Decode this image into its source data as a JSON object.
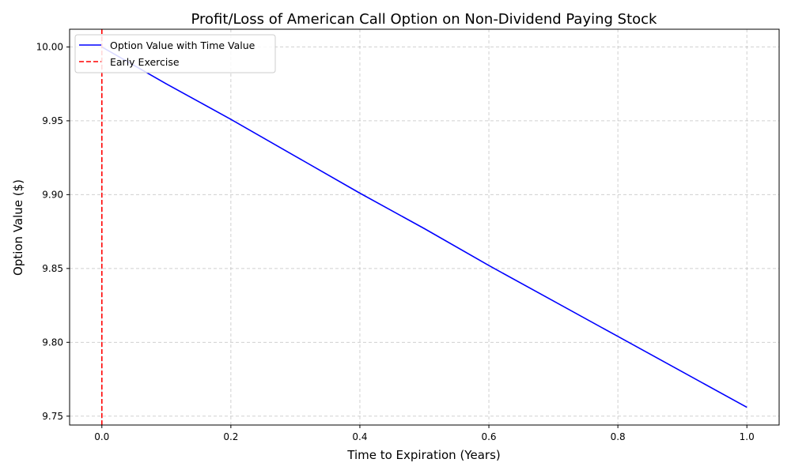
{
  "chart_data": {
    "type": "line",
    "title": "Profit/Loss of American Call Option on Non-Dividend Paying Stock",
    "xlabel": "Time to Expiration (Years)",
    "ylabel": "Option Value ($)",
    "xlim": [
      -0.05,
      1.05
    ],
    "ylim": [
      9.744,
      10.012
    ],
    "x_ticks": [
      0.0,
      0.2,
      0.4,
      0.6,
      0.8,
      1.0
    ],
    "x_tick_labels": [
      "0.0",
      "0.2",
      "0.4",
      "0.6",
      "0.8",
      "1.0"
    ],
    "y_ticks": [
      9.75,
      9.8,
      9.85,
      9.9,
      9.95,
      10.0
    ],
    "y_tick_labels": [
      "9.75",
      "9.80",
      "9.85",
      "9.90",
      "9.95",
      "10.00"
    ],
    "grid": true,
    "legend_position": "top-left",
    "series": [
      {
        "name": "Option Value with Time Value",
        "color": "#0000ff",
        "style": "solid",
        "x": [
          0.0,
          0.1,
          0.2,
          0.3,
          0.4,
          0.5,
          0.6,
          0.7,
          0.8,
          0.9,
          1.0
        ],
        "y": [
          10.0,
          9.975,
          9.951,
          9.926,
          9.901,
          9.877,
          9.852,
          9.828,
          9.804,
          9.78,
          9.756
        ]
      },
      {
        "name": "Early Exercise",
        "color": "#ff0000",
        "style": "dashed",
        "vline_x": 0.0
      }
    ]
  }
}
